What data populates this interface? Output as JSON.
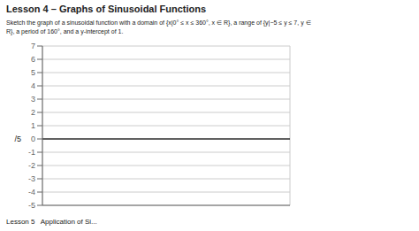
{
  "chart_data": {
    "type": "line",
    "title": "Lesson 4 – Graphs of Sinusoidal Functions",
    "subtitle": [
      "Sketch the graph of a sinusoidal function with a domain of {x|0° ≤ x ≤ 360°, x ∈ R}, a range of {y|−5 ≤ y ≤ 7, y ∈",
      "R}, a period of 160°, and a y-intercept of 1."
    ],
    "annotations": [
      "/5",
      "Lesson 5   Application of Si..."
    ],
    "xlim": [
      0,
      360
    ],
    "ylim": [
      -5,
      7
    ],
    "xticks": [
      0,
      10,
      20,
      30,
      40,
      50,
      60,
      70,
      80,
      90,
      100,
      110,
      120,
      130,
      140,
      150,
      160,
      170,
      180,
      190,
      200,
      210,
      220,
      230,
      240,
      250,
      260,
      270,
      280,
      290,
      300,
      310,
      320,
      330,
      340,
      350,
      360
    ],
    "yticks": [
      -5,
      -4,
      -3,
      -2,
      -1,
      0,
      1,
      2,
      3,
      4,
      5,
      6,
      7
    ],
    "grid": true,
    "tick_labels": "y",
    "series": []
  }
}
